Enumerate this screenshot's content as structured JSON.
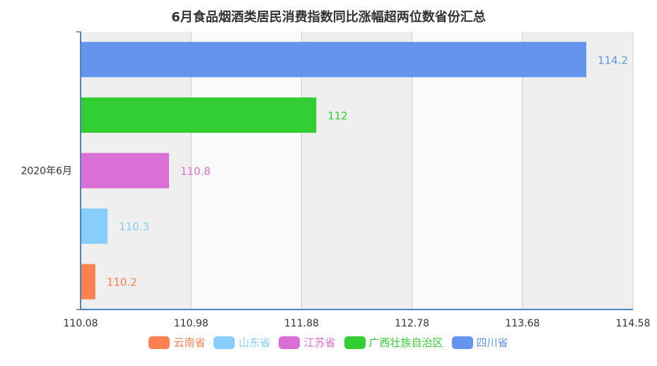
{
  "chart_data": {
    "type": "bar",
    "orientation": "horizontal",
    "title": "6月食品烟酒类居民消费指数同比涨幅超两位数省份汇总",
    "category": "2020年6月",
    "xlim": [
      110.08,
      114.58
    ],
    "x_ticks": [
      "110.08",
      "110.98",
      "111.88",
      "112.78",
      "113.68",
      "114.58"
    ],
    "series": [
      {
        "name": "云南省",
        "value": 110.2,
        "label": "110.2",
        "color": "#FF8050"
      },
      {
        "name": "山东省",
        "value": 110.3,
        "label": "110.3",
        "color": "#87CEFA"
      },
      {
        "name": "江苏省",
        "value": 110.8,
        "label": "110.8",
        "color": "#DA70D6"
      },
      {
        "name": "广西壮族自治区",
        "value": 112,
        "label": "112",
        "color": "#32CD32"
      },
      {
        "name": "四川省",
        "value": 114.2,
        "label": "114.2",
        "color": "#6495ED"
      }
    ],
    "legend_position": "bottom",
    "grid": true
  }
}
